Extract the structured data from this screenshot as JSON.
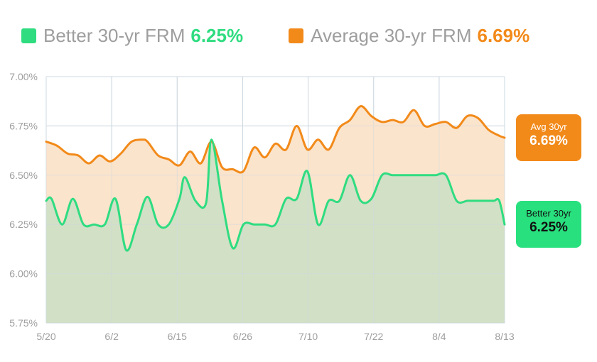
{
  "legend": [
    {
      "label": "Better 30-yr FRM",
      "value": "6.25%",
      "color": "#2fdc80"
    },
    {
      "label": "Average 30-yr FRM",
      "value": "6.69%",
      "color": "#f28a1a"
    }
  ],
  "badges": {
    "avg": {
      "label": "Avg 30yr",
      "value": "6.69%"
    },
    "better": {
      "label": "Better 30yr",
      "value": "6.25%"
    }
  },
  "colors": {
    "better_line": "#2fdc80",
    "better_fill": "#d2e0c6",
    "avg_line": "#f28a1a",
    "avg_fill": "#fbe4cc",
    "grid": "#cdd8e0",
    "tick_text": "#9e9e9e"
  },
  "chart_data": {
    "type": "area",
    "x_tick_labels": [
      "5/20",
      "6/2",
      "6/15",
      "6/26",
      "7/10",
      "7/22",
      "8/4",
      "8/13"
    ],
    "y_tick_labels": [
      "7.00%",
      "6.75%",
      "6.50%",
      "6.25%",
      "6.00%",
      "5.75%"
    ],
    "ylim": [
      5.75,
      7.0
    ],
    "xlim": [
      0,
      86
    ],
    "grid": true,
    "legend_position": "top",
    "series": [
      {
        "name": "Average 30-yr FRM",
        "x": [
          0,
          2,
          4,
          6,
          8,
          10,
          12,
          14,
          16,
          18,
          19,
          21,
          23,
          25,
          27,
          29,
          31,
          33,
          35,
          37,
          39,
          41,
          43,
          45,
          47,
          49,
          51,
          53,
          55,
          57,
          59,
          61,
          63,
          65,
          67,
          69,
          71,
          73,
          75,
          77,
          79,
          81,
          83,
          85,
          86
        ],
        "y": [
          6.67,
          6.65,
          6.61,
          6.6,
          6.56,
          6.6,
          6.57,
          6.61,
          6.67,
          6.68,
          6.67,
          6.6,
          6.58,
          6.55,
          6.62,
          6.56,
          6.67,
          6.54,
          6.53,
          6.52,
          6.64,
          6.59,
          6.66,
          6.63,
          6.75,
          6.63,
          6.68,
          6.63,
          6.74,
          6.78,
          6.85,
          6.8,
          6.77,
          6.78,
          6.77,
          6.83,
          6.75,
          6.76,
          6.77,
          6.74,
          6.8,
          6.79,
          6.73,
          6.7,
          6.69
        ]
      },
      {
        "name": "Better 30-yr FRM",
        "x": [
          0,
          1,
          3,
          5,
          7,
          9,
          11,
          13,
          15,
          17,
          19,
          21,
          23,
          25,
          26,
          28,
          30,
          31,
          33,
          35,
          37,
          39,
          41,
          43,
          45,
          47,
          49,
          51,
          53,
          55,
          57,
          59,
          61,
          63,
          65,
          67,
          69,
          71,
          73,
          75,
          77,
          79,
          80,
          81,
          82,
          83,
          84,
          85,
          86
        ],
        "y": [
          6.37,
          6.38,
          6.25,
          6.38,
          6.25,
          6.25,
          6.25,
          6.38,
          6.12,
          6.25,
          6.39,
          6.25,
          6.25,
          6.38,
          6.49,
          6.37,
          6.36,
          6.68,
          6.37,
          6.13,
          6.25,
          6.25,
          6.25,
          6.25,
          6.38,
          6.38,
          6.52,
          6.25,
          6.37,
          6.37,
          6.5,
          6.37,
          6.38,
          6.5,
          6.5,
          6.5,
          6.5,
          6.5,
          6.5,
          6.5,
          6.37,
          6.37,
          6.37,
          6.37,
          6.37,
          6.37,
          6.37,
          6.37,
          6.25
        ]
      }
    ]
  }
}
